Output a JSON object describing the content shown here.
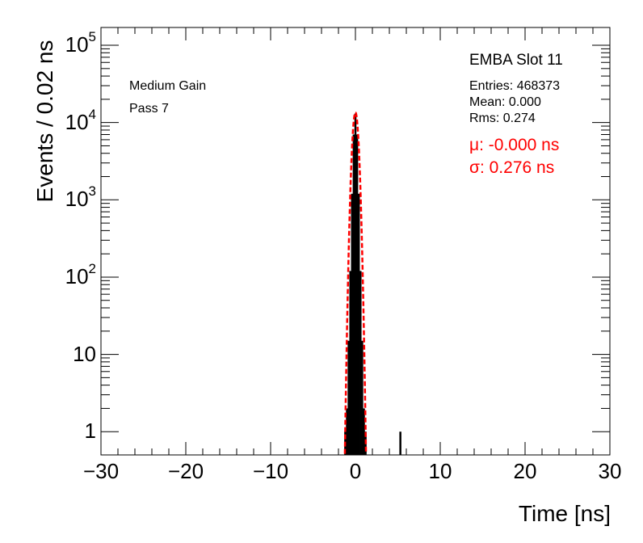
{
  "chart_data": {
    "type": "histogram",
    "xlabel": "Time [ns]",
    "ylabel": "Events / 0.02 ns",
    "xlim": [
      -30,
      30
    ],
    "ylim": [
      0.5,
      170000
    ],
    "yscale": "log",
    "grid": false,
    "x_ticks": [
      {
        "value": -30,
        "label": "−30"
      },
      {
        "value": -20,
        "label": "−20"
      },
      {
        "value": -10,
        "label": "−10"
      },
      {
        "value": 0,
        "label": "0"
      },
      {
        "value": 10,
        "label": "10"
      },
      {
        "value": 20,
        "label": "20"
      },
      {
        "value": 30,
        "label": "30"
      }
    ],
    "y_ticks": [
      {
        "value": 1,
        "base": "1",
        "exp": ""
      },
      {
        "value": 10,
        "base": "10",
        "exp": ""
      },
      {
        "value": 100,
        "base": "10",
        "exp": "2"
      },
      {
        "value": 1000,
        "base": "10",
        "exp": "3"
      },
      {
        "value": 10000,
        "base": "10",
        "exp": "4"
      },
      {
        "value": 100000,
        "base": "10",
        "exp": "5"
      }
    ],
    "histogram": {
      "x": [
        -1.2,
        -1.0,
        -0.8,
        -0.6,
        -0.4,
        -0.2,
        0.0,
        0.2,
        0.4,
        0.6,
        0.8,
        1.0,
        1.2,
        5.3
      ],
      "y": [
        1,
        2,
        15,
        120,
        1200,
        7000,
        13000,
        7000,
        1200,
        120,
        15,
        2,
        1,
        1
      ]
    },
    "fit": {
      "type": "gaussian",
      "color": "#ff0000",
      "amplitude": 13500,
      "mu": -0.0,
      "sigma": 0.276
    },
    "annotations": {
      "left": [
        "Medium Gain",
        "Pass 7"
      ],
      "stats_title": "EMBA Slot 11",
      "stats": [
        "Entries: 468373",
        "Mean: 0.000",
        "Rms: 0.274"
      ],
      "fit_results": [
        "μ: -0.000 ns",
        "σ: 0.276 ns"
      ]
    }
  }
}
